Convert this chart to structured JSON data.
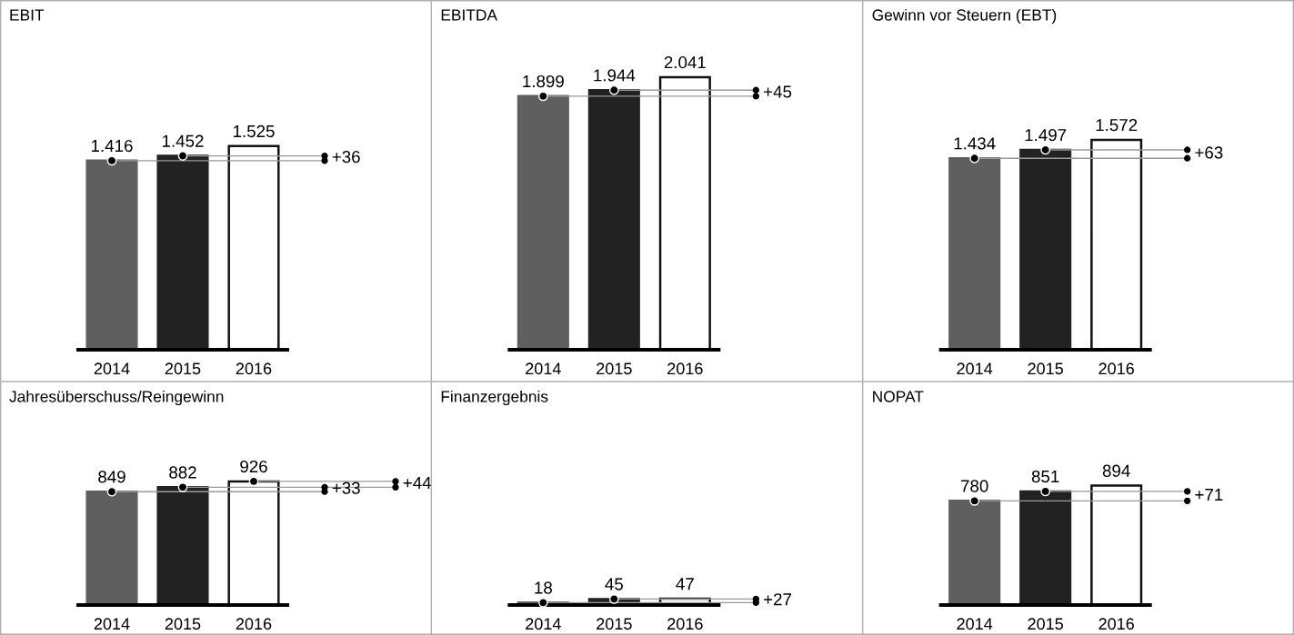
{
  "chart_data": [
    {
      "type": "bar",
      "title": "EBIT",
      "categories": [
        "2014",
        "2015",
        "2016"
      ],
      "values": [
        1416,
        1452,
        1525
      ],
      "value_labels": [
        "1.416",
        "1.452",
        "1.525"
      ],
      "colors": [
        "#5f5f5f",
        "#222222",
        "#ffffff"
      ],
      "series": [
        {
          "type": "scatter",
          "values": [
            1416,
            1452,
            null
          ],
          "color": "#000000"
        }
      ],
      "marker": "circle",
      "ref_lines": [
        {
          "axis": "y",
          "value": 1416,
          "color": "#9a9a9a"
        },
        {
          "axis": "y",
          "value": 1452,
          "color": "#9a9a9a"
        }
      ],
      "annotations": [
        "+36"
      ]
    },
    {
      "type": "bar",
      "title": "EBITDA",
      "categories": [
        "2014",
        "2015",
        "2016"
      ],
      "values": [
        1899,
        1944,
        2041
      ],
      "value_labels": [
        "1.899",
        "1.944",
        "2.041"
      ],
      "colors": [
        "#5f5f5f",
        "#222222",
        "#ffffff"
      ],
      "series": [
        {
          "type": "scatter",
          "values": [
            1899,
            1944,
            null
          ],
          "color": "#000000"
        }
      ],
      "marker": "circle",
      "ref_lines": [
        {
          "axis": "y",
          "value": 1899,
          "color": "#9a9a9a"
        },
        {
          "axis": "y",
          "value": 1944,
          "color": "#9a9a9a"
        }
      ],
      "annotations": [
        "+45"
      ]
    },
    {
      "type": "bar",
      "title": "Gewinn vor Steuern (EBT)",
      "categories": [
        "2014",
        "2015",
        "2016"
      ],
      "values": [
        1434,
        1497,
        1572
      ],
      "value_labels": [
        "1.434",
        "1.497",
        "1.572"
      ],
      "colors": [
        "#5f5f5f",
        "#222222",
        "#ffffff"
      ],
      "series": [
        {
          "type": "scatter",
          "values": [
            1434,
            1497,
            null
          ],
          "color": "#000000"
        }
      ],
      "marker": "circle",
      "ref_lines": [
        {
          "axis": "y",
          "value": 1434,
          "color": "#9a9a9a"
        },
        {
          "axis": "y",
          "value": 1497,
          "color": "#9a9a9a"
        }
      ],
      "annotations": [
        "+63"
      ]
    },
    {
      "type": "bar",
      "title": "Jahresüberschuss/Reingewinn",
      "categories": [
        "2014",
        "2015",
        "2016"
      ],
      "values": [
        849,
        882,
        926
      ],
      "value_labels": [
        "849",
        "882",
        "926"
      ],
      "colors": [
        "#5f5f5f",
        "#222222",
        "#ffffff"
      ],
      "series": [
        {
          "type": "scatter",
          "values": [
            849,
            882,
            926
          ],
          "color": "#000000"
        }
      ],
      "marker": "circle",
      "ref_lines": [
        {
          "axis": "y",
          "value": 849,
          "color": "#9a9a9a"
        },
        {
          "axis": "y",
          "value": 882,
          "color": "#9a9a9a"
        },
        {
          "axis": "y",
          "value": 926,
          "color": "#9a9a9a"
        }
      ],
      "annotations": [
        "+33",
        "+44"
      ]
    },
    {
      "type": "bar",
      "title": "Finanzergebnis",
      "categories": [
        "2014",
        "2015",
        "2016"
      ],
      "values": [
        18,
        45,
        47
      ],
      "value_labels": [
        "18",
        "45",
        "47"
      ],
      "colors": [
        "#5f5f5f",
        "#222222",
        "#ffffff"
      ],
      "series": [
        {
          "type": "scatter",
          "values": [
            18,
            45,
            null
          ],
          "color": "#000000"
        }
      ],
      "marker": "circle",
      "ref_lines": [
        {
          "axis": "y",
          "value": 18,
          "color": "#9a9a9a"
        },
        {
          "axis": "y",
          "value": 45,
          "color": "#9a9a9a"
        }
      ],
      "annotations": [
        "+27"
      ]
    },
    {
      "type": "bar",
      "title": "NOPAT",
      "categories": [
        "2014",
        "2015",
        "2016"
      ],
      "values": [
        780,
        851,
        894
      ],
      "value_labels": [
        "780",
        "851",
        "894"
      ],
      "colors": [
        "#5f5f5f",
        "#222222",
        "#ffffff"
      ],
      "series": [
        {
          "type": "scatter",
          "values": [
            780,
            851,
            null
          ],
          "color": "#000000"
        }
      ],
      "marker": "circle",
      "ref_lines": [
        {
          "axis": "y",
          "value": 780,
          "color": "#9a9a9a"
        },
        {
          "axis": "y",
          "value": 851,
          "color": "#9a9a9a"
        }
      ],
      "annotations": [
        "+71"
      ]
    }
  ]
}
